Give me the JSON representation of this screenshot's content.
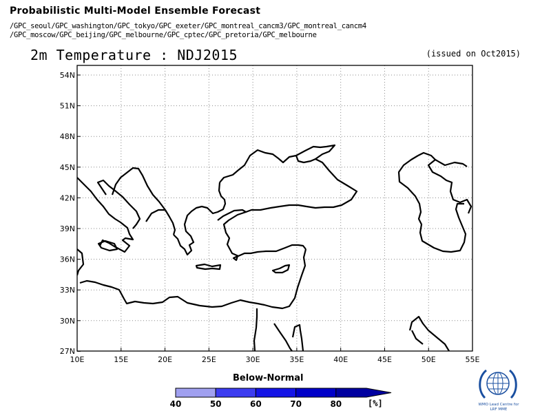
{
  "header": {
    "title": "Probabilistic Multi-Model Ensemble Forecast",
    "models_line1": "/GPC_seoul/GPC_washington/GPC_tokyo/GPC_exeter/GPC_montreal_cancm3/GPC_montreal_cancm4",
    "models_line2": "/GPC_moscow/GPC_beijing/GPC_melbourne/GPC_cptec/GPC_pretoria/GPC_melbourne"
  },
  "map": {
    "title": "2m Temperature : NDJ2015",
    "issued": "(issued on Oct2015)",
    "lat_labels": [
      "54N",
      "51N",
      "48N",
      "45N",
      "42N",
      "39N",
      "36N",
      "33N",
      "30N",
      "27N"
    ],
    "lon_labels": [
      "10E",
      "15E",
      "20E",
      "25E",
      "30E",
      "35E",
      "40E",
      "45E",
      "50E",
      "55E"
    ],
    "coast_color": "#000000",
    "grid": "dotted"
  },
  "colorbar": {
    "title": "Below-Normal",
    "labels": [
      "40",
      "50",
      "60",
      "70",
      "80"
    ],
    "unit": "[%]",
    "colors": [
      "#a0a0f0",
      "#3c3cf0",
      "#1414e6",
      "#0000c8",
      "#0000a0"
    ]
  },
  "logo": {
    "icon": "wmo-globe-icon",
    "caption_line1": "WMO Lead Centre for",
    "caption_line2": "LRF MME"
  }
}
